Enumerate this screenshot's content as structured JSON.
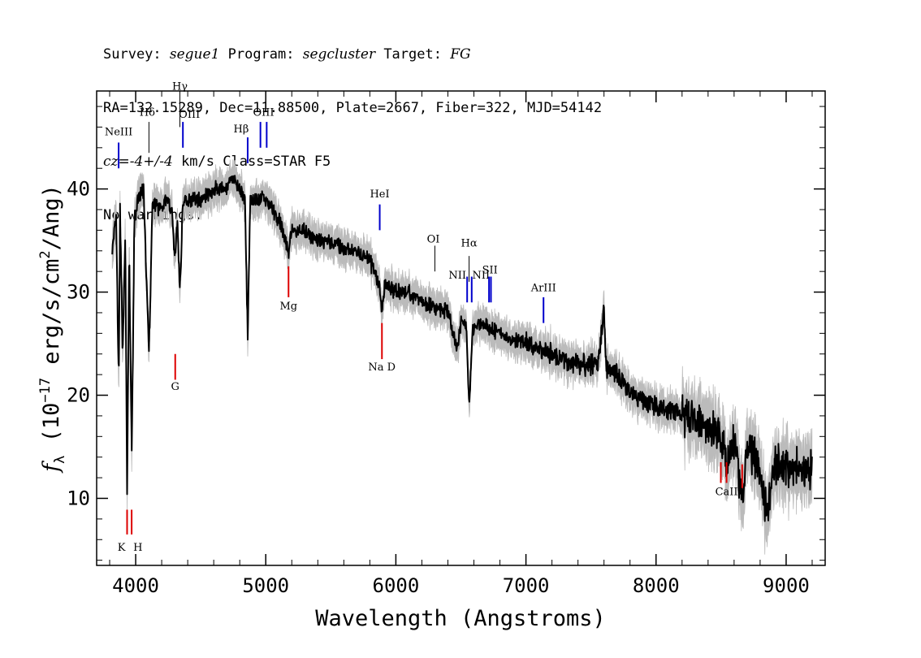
{
  "header": {
    "line1": {
      "survey_label": "Survey: ",
      "survey": "segue1",
      "program_label": " Program: ",
      "program": "segcluster",
      "target_label": " Target: ",
      "target": "FG"
    },
    "line2": "RA=132.15289, Dec=11.88500, Plate=2667, Fiber=322, MJD=54142",
    "line3": {
      "cz_label": "cz=-4+/-4",
      "rest": " km/s Class=STAR F5"
    },
    "line4": "No warnings."
  },
  "colors": {
    "emission": "#0000cc",
    "absorption": "#dd0000",
    "sky": "#000000",
    "flux": "#000000",
    "error": "#bbbbbb"
  },
  "chart_data": {
    "type": "line",
    "xlabel": "Wavelength (Angstroms)",
    "ylabel": "f_λ (10^-17 erg/s/cm^2/Ang)",
    "ylabel_parts": {
      "f": "f",
      "sub": "λ",
      "open": " (10",
      "exp": "−17",
      "mid": " erg/s/cm",
      "exp2": "2",
      "close": "/Ang)"
    },
    "xlim": [
      3700,
      9300
    ],
    "ylim": [
      3.5,
      49.5
    ],
    "x_ticks": [
      4000,
      5000,
      6000,
      7000,
      8000,
      9000
    ],
    "y_ticks": [
      10,
      20,
      30,
      40
    ],
    "grid": false,
    "series": [
      {
        "x": [
          3820,
          3850,
          3870,
          3880,
          3900,
          3920,
          3934,
          3950,
          3970,
          3990,
          4020,
          4060,
          4102,
          4130,
          4180,
          4230,
          4280,
          4300,
          4320,
          4340,
          4360,
          4380,
          4420,
          4500,
          4600,
          4700,
          4750,
          4800,
          4840,
          4861,
          4880,
          4920,
          5000,
          5100,
          5175,
          5200,
          5300,
          5400,
          5500,
          5600,
          5700,
          5800,
          5870,
          5893,
          5920,
          6000,
          6100,
          6200,
          6300,
          6400,
          6470,
          6500,
          6540,
          6563,
          6590,
          6650,
          6800,
          7000,
          7200,
          7400,
          7550,
          7600,
          7620,
          7700,
          7800,
          8000,
          8200,
          8400,
          8500,
          8542,
          8600,
          8662,
          8700,
          8800,
          8850,
          8900,
          9000,
          9100,
          9200
        ],
        "values": [
          34,
          37,
          21,
          38,
          24,
          36,
          10,
          34,
          14,
          37,
          39,
          40,
          24,
          39,
          38,
          39,
          38,
          33,
          37,
          30,
          38,
          39,
          39,
          39,
          40,
          40,
          41,
          40,
          39,
          25.5,
          39,
          39,
          39,
          37,
          34,
          36,
          36,
          35,
          35,
          34,
          34,
          33,
          31,
          28,
          31,
          30,
          30,
          29,
          28.5,
          28,
          24.5,
          27,
          27,
          19,
          26.5,
          27,
          26,
          25,
          24,
          23,
          23,
          28,
          22.5,
          22,
          20,
          19,
          18,
          17,
          16,
          13,
          16,
          10,
          15,
          13,
          8.5,
          13,
          13,
          13,
          13
        ]
      }
    ],
    "lines": [
      {
        "label": "NeIII",
        "x": 3869,
        "type": "emission"
      },
      {
        "label": "Hδ",
        "x": 4102,
        "type": "sky"
      },
      {
        "label": "Hγ",
        "x": 4340,
        "type": "sky"
      },
      {
        "label": "OIII",
        "x": 4363,
        "type": "emission"
      },
      {
        "label": "Hβ",
        "x": 4861,
        "type": "emission"
      },
      {
        "label": "OIII",
        "x": 4959,
        "type": "emission"
      },
      {
        "label": "OIII",
        "x": 5007,
        "type": "emission"
      },
      {
        "label": "HeI",
        "x": 5876,
        "type": "emission"
      },
      {
        "label": "OI",
        "x": 6300,
        "type": "sky"
      },
      {
        "label": "NII",
        "x": 6548,
        "type": "emission"
      },
      {
        "label": "Hα",
        "x": 6563,
        "type": "sky"
      },
      {
        "label": "NII",
        "x": 6583,
        "type": "emission"
      },
      {
        "label": "SII",
        "x": 6716,
        "type": "emission"
      },
      {
        "label": "SII",
        "x": 6731,
        "type": "emission"
      },
      {
        "label": "ArIII",
        "x": 7135,
        "type": "emission"
      },
      {
        "label": "K",
        "x": 3934,
        "type": "absorption"
      },
      {
        "label": "H",
        "x": 3969,
        "type": "absorption"
      },
      {
        "label": "G",
        "x": 4304,
        "type": "absorption"
      },
      {
        "label": "Mg",
        "x": 5175,
        "type": "absorption"
      },
      {
        "label": "Na D",
        "x": 5893,
        "type": "absorption"
      },
      {
        "label": "CaII",
        "x": 8498,
        "type": "absorption"
      },
      {
        "label": "CaII",
        "x": 8542,
        "type": "absorption"
      },
      {
        "label": "CaII",
        "x": 8662,
        "type": "absorption"
      }
    ]
  }
}
